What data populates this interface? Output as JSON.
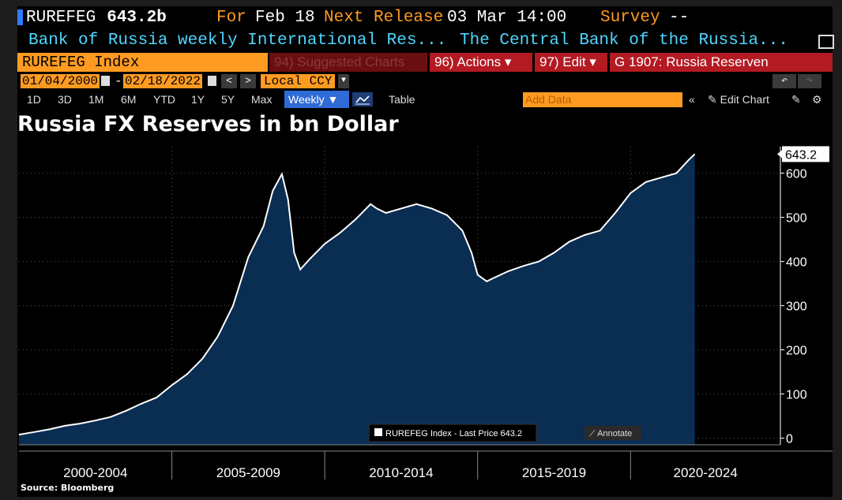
{
  "header": {
    "ticker": "RUREFEG",
    "last_price": "643.2b",
    "for_label": "For",
    "for_date": "Feb 18",
    "next_release_label": "Next Release",
    "next_release_value": "03 Mar 14:00",
    "survey_label": "Survey",
    "survey_value": "--",
    "desc_left": "Bank of Russia weekly International Res...",
    "desc_right": "The Central Bank of the Russia..."
  },
  "commands": {
    "index": "RUREFEG Index",
    "suggested": "94) Suggested Charts",
    "actions": "96) Actions ▾",
    "edit": "97) Edit ▾",
    "chart_id": "G 1907: Russia Reserven"
  },
  "controls": {
    "start_date": "01/04/2000",
    "end_date": "02/18/2022",
    "currency": "Local CCY",
    "periods": [
      "1D",
      "3D",
      "1M",
      "6M",
      "YTD",
      "1Y",
      "5Y",
      "Max"
    ],
    "frequency": "Weekly ▼",
    "table_label": "Table",
    "add_data_placeholder": "Add Data",
    "edit_chart_label": "✎ Edit Chart"
  },
  "colors": {
    "accent_orange": "#ff9b21",
    "area_fill": "#0a2d52",
    "line": "#ffffff",
    "command_red": "#b31a22"
  },
  "chart_data": {
    "type": "area",
    "title": "Russia FX Reserves in bn Dollar",
    "source": "Source: Bloomberg",
    "legend": "RUREFEG Index - Last Price 643.2",
    "annotate_label": "⟋ Annotate",
    "last_value_label": "643.2",
    "x_category_labels": [
      "2000-2004",
      "2005-2009",
      "2010-2014",
      "2015-2019",
      "2020-2024"
    ],
    "y_ticks": [
      0,
      100,
      200,
      300,
      400,
      500,
      600
    ],
    "ylim": [
      -15,
      660
    ],
    "xlim": [
      2000.0,
      2024.9
    ],
    "grid": true,
    "legend_position": "bottom-center",
    "series": [
      {
        "x": [
          2000.0,
          2000.5,
          2001.0,
          2001.5,
          2002.0,
          2002.5,
          2003.0,
          2003.5,
          2004.0,
          2004.5,
          2005.0,
          2005.5,
          2006.0,
          2006.5,
          2007.0,
          2007.5,
          2008.0,
          2008.3,
          2008.6,
          2008.8,
          2009.0,
          2009.2,
          2009.5,
          2010.0,
          2010.5,
          2011.0,
          2011.5,
          2011.7,
          2012.0,
          2012.5,
          2013.0,
          2013.5,
          2014.0,
          2014.5,
          2014.8,
          2015.0,
          2015.3,
          2015.5,
          2016.0,
          2016.5,
          2017.0,
          2017.5,
          2018.0,
          2018.5,
          2019.0,
          2019.5,
          2020.0,
          2020.5,
          2021.0,
          2021.5,
          2021.9,
          2022.1
        ],
        "values": [
          8,
          14,
          20,
          28,
          33,
          40,
          48,
          62,
          78,
          92,
          120,
          145,
          180,
          230,
          300,
          410,
          480,
          560,
          598,
          540,
          420,
          382,
          405,
          440,
          465,
          495,
          530,
          520,
          510,
          520,
          530,
          520,
          505,
          470,
          420,
          370,
          355,
          362,
          378,
          390,
          400,
          420,
          445,
          460,
          470,
          510,
          555,
          580,
          590,
          600,
          630,
          643.2
        ]
      }
    ]
  }
}
